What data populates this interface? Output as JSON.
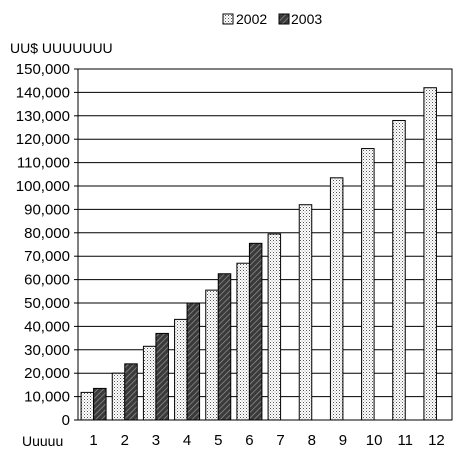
{
  "chart_data": {
    "type": "bar",
    "title": "",
    "ylabel": "UU$ UUUUUUU",
    "xlabel": "Uuuuu",
    "categories": [
      "1",
      "2",
      "3",
      "4",
      "5",
      "6",
      "7",
      "8",
      "9",
      "10",
      "11",
      "12"
    ],
    "series": [
      {
        "name": "2002",
        "pattern": "dotted",
        "color": "#ffffff",
        "values": [
          11800,
          20000,
          31500,
          43000,
          55500,
          67000,
          79500,
          92000,
          103500,
          116000,
          128000,
          142000
        ]
      },
      {
        "name": "2003",
        "pattern": "hatched",
        "color": "#555555",
        "values": [
          13500,
          24000,
          37000,
          50000,
          62500,
          75500,
          null,
          null,
          null,
          null,
          null,
          null
        ]
      }
    ],
    "ylim": [
      0,
      150000
    ],
    "yticks": [
      "0",
      "10,000",
      "20,000",
      "30,000",
      "40,000",
      "50,000",
      "60,000",
      "70,000",
      "80,000",
      "90,000",
      "100,000",
      "110,000",
      "120,000",
      "130,000",
      "140,000",
      "150,000"
    ],
    "grid": true,
    "legend": "top-right"
  }
}
